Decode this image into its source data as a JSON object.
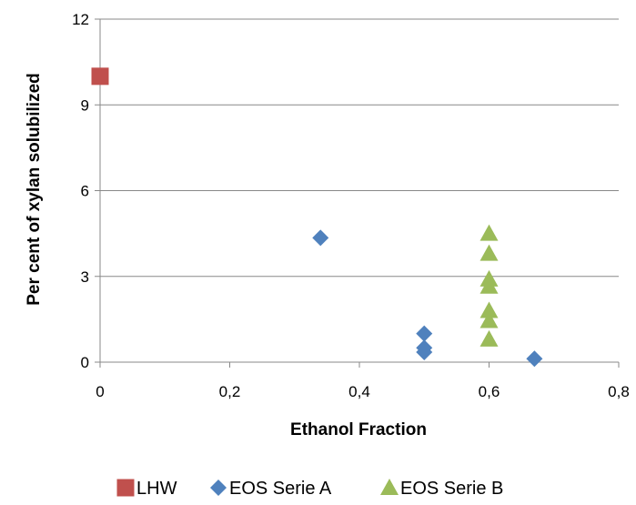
{
  "chart_data": {
    "type": "scatter",
    "title": "",
    "xlabel": "Ethanol Fraction",
    "ylabel": "Per cent of xylan solubilized",
    "xlim": [
      0,
      0.8
    ],
    "ylim": [
      0,
      12
    ],
    "x_ticks": [
      "0",
      "0,2",
      "0,4",
      "0,6",
      "0,8"
    ],
    "y_ticks": [
      "0",
      "3",
      "6",
      "9",
      "12"
    ],
    "grid": "horizontal",
    "legend": "bottom",
    "series": [
      {
        "name": "LHW",
        "marker": "square",
        "color": "#c0504d",
        "points": [
          [
            0,
            10.0
          ]
        ]
      },
      {
        "name": "EOS Serie A",
        "marker": "diamond",
        "color": "#4f81bd",
        "points": [
          [
            0.34,
            4.35
          ],
          [
            0.5,
            1.0
          ],
          [
            0.5,
            0.5
          ],
          [
            0.5,
            0.35
          ],
          [
            0.67,
            0.12
          ]
        ]
      },
      {
        "name": "EOS Serie B",
        "marker": "triangle",
        "color": "#9bbb59",
        "points": [
          [
            0.6,
            4.5
          ],
          [
            0.6,
            3.8
          ],
          [
            0.6,
            2.9
          ],
          [
            0.6,
            2.65
          ],
          [
            0.6,
            1.8
          ],
          [
            0.6,
            1.45
          ],
          [
            0.6,
            0.8
          ]
        ]
      }
    ]
  }
}
